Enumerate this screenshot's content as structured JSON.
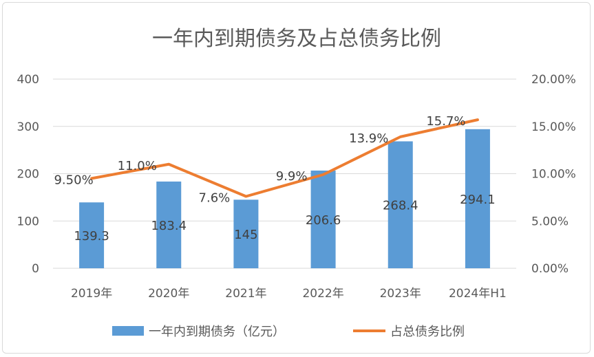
{
  "chart_data": {
    "type": "bar+line",
    "title": "一年内到期债务及占总债务比例",
    "categories": [
      "2019年",
      "2020年",
      "2021年",
      "2022年",
      "2023年",
      "2024年H1"
    ],
    "series": [
      {
        "name": "一年内到期债务（亿元）",
        "type": "bar",
        "axis": "left",
        "color": "#5B9BD5",
        "values": [
          139.3,
          183.4,
          145,
          206.6,
          268.4,
          294.1
        ],
        "labels": [
          "139.3",
          "183.4",
          "145",
          "206.6",
          "268.4",
          "294.1"
        ]
      },
      {
        "name": "占总债务比例",
        "type": "line",
        "axis": "right",
        "color": "#ED7D31",
        "values": [
          9.5,
          11.0,
          7.6,
          9.9,
          13.9,
          15.7
        ],
        "labels": [
          "9.50%",
          "11.0%",
          "7.6%",
          "9.9%",
          "13.9%",
          "15.7%"
        ]
      }
    ],
    "left_axis": {
      "ylim": [
        0,
        400
      ],
      "ticks": [
        "0",
        "100",
        "200",
        "300",
        "400"
      ]
    },
    "right_axis": {
      "ylim": [
        0,
        20
      ],
      "ticks": [
        "0.00%",
        "5.00%",
        "10.00%",
        "15.00%",
        "20.00%"
      ]
    },
    "grid": true,
    "legend": "bottom"
  }
}
